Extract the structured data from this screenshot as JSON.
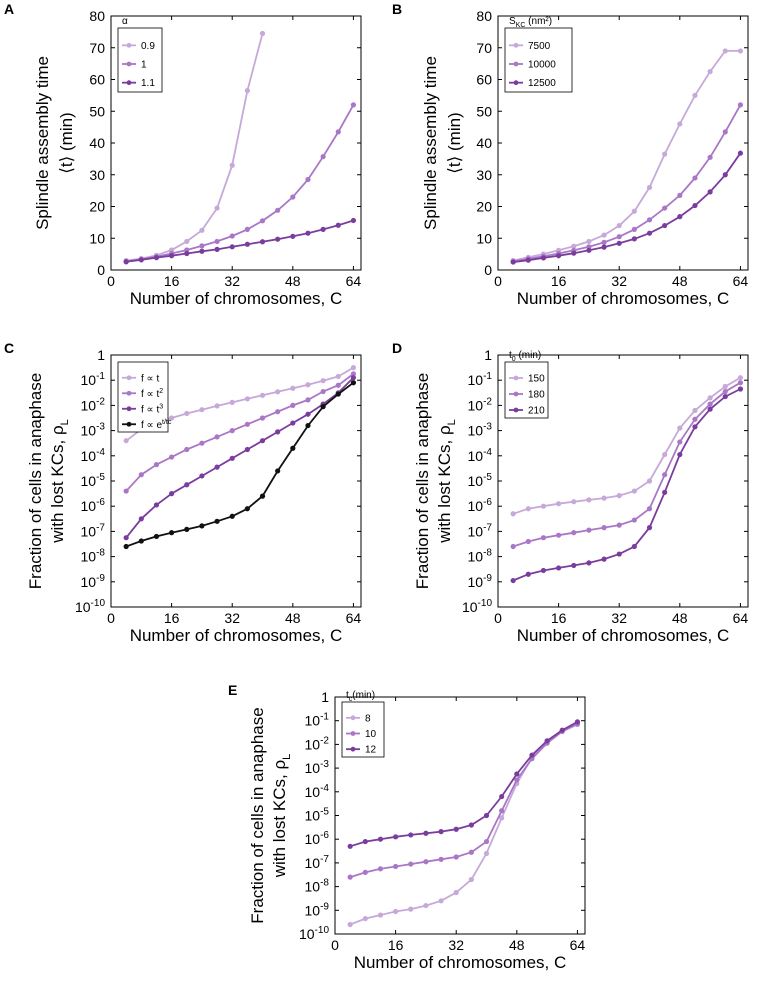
{
  "colors": {
    "axis": "#000000",
    "series_light": "#c6a9d9",
    "series_mid": "#a977c6",
    "series_dark": "#7a3d9e",
    "series_black": "#111111"
  },
  "chart_data": [
    {
      "panel": "A",
      "type": "line",
      "scale": "linear",
      "xlabel": "Number of chromosomes, C",
      "ylabel_line1": "Splindle assembly time",
      "ylabel_line2": "⟨t⟩ (min)",
      "xlim": [
        0,
        66
      ],
      "ylim": [
        0,
        80
      ],
      "xticks": [
        0,
        16,
        32,
        48,
        64
      ],
      "yticks": [
        0,
        10,
        20,
        30,
        40,
        50,
        60,
        70,
        80
      ],
      "legend_title": "α",
      "series": [
        {
          "name": "0.9",
          "color": "#c6a9d9",
          "x": [
            4,
            8,
            12,
            16,
            20,
            24,
            28,
            32,
            36,
            40
          ],
          "y": [
            3.0,
            3.6,
            4.6,
            6.3,
            9.0,
            12.5,
            19.5,
            33.0,
            56.5,
            74.5
          ]
        },
        {
          "name": "1",
          "color": "#a977c6",
          "x": [
            4,
            8,
            12,
            16,
            20,
            24,
            28,
            32,
            36,
            40,
            44,
            48,
            52,
            56,
            60,
            64
          ],
          "y": [
            2.6,
            3.4,
            4.2,
            5.2,
            6.3,
            7.6,
            9.0,
            10.7,
            12.8,
            15.5,
            18.8,
            23.0,
            28.5,
            35.7,
            43.5,
            52.0
          ]
        },
        {
          "name": "1.1",
          "color": "#7a3d9e",
          "x": [
            4,
            8,
            12,
            16,
            20,
            24,
            28,
            32,
            36,
            40,
            44,
            48,
            52,
            56,
            60,
            64
          ],
          "y": [
            2.6,
            3.2,
            3.9,
            4.5,
            5.2,
            5.9,
            6.5,
            7.3,
            8.1,
            8.9,
            9.7,
            10.6,
            11.6,
            12.8,
            14.1,
            15.6
          ]
        }
      ]
    },
    {
      "panel": "B",
      "type": "line",
      "scale": "linear",
      "xlabel": "Number of chromosomes, C",
      "ylabel_line1": "Splindle assembly time",
      "ylabel_line2": "⟨t⟩ (min)",
      "xlim": [
        0,
        66
      ],
      "ylim": [
        0,
        80
      ],
      "xticks": [
        0,
        16,
        32,
        48,
        64
      ],
      "yticks": [
        0,
        10,
        20,
        30,
        40,
        50,
        60,
        70,
        80
      ],
      "legend_title": "S_KC (nm²)",
      "legend_title_main": "S",
      "legend_title_sub": "KC",
      "legend_title_rest": " (nm²)",
      "series": [
        {
          "name": "7500",
          "color": "#c6a9d9",
          "x": [
            4,
            8,
            12,
            16,
            20,
            24,
            28,
            32,
            36,
            40,
            44,
            48,
            52,
            56,
            60,
            64
          ],
          "y": [
            3.0,
            4.0,
            5.0,
            6.2,
            7.5,
            9.0,
            11.0,
            14.0,
            18.5,
            26.0,
            36.5,
            46.0,
            55.0,
            62.5,
            69.0,
            69.0
          ]
        },
        {
          "name": "10000",
          "color": "#a977c6",
          "x": [
            4,
            8,
            12,
            16,
            20,
            24,
            28,
            32,
            36,
            40,
            44,
            48,
            52,
            56,
            60,
            64
          ],
          "y": [
            2.7,
            3.5,
            4.3,
            5.2,
            6.2,
            7.3,
            8.7,
            10.5,
            12.8,
            15.8,
            19.5,
            23.5,
            29.0,
            35.5,
            43.5,
            52.0
          ]
        },
        {
          "name": "12500",
          "color": "#7a3d9e",
          "x": [
            4,
            8,
            12,
            16,
            20,
            24,
            28,
            32,
            36,
            40,
            44,
            48,
            52,
            56,
            60,
            64
          ],
          "y": [
            2.5,
            3.1,
            3.8,
            4.5,
            5.3,
            6.2,
            7.2,
            8.4,
            9.8,
            11.6,
            14.0,
            16.8,
            20.3,
            24.6,
            30.0,
            36.8
          ]
        }
      ]
    },
    {
      "panel": "C",
      "type": "line",
      "scale": "log",
      "xlabel": "Number of chromosomes, C",
      "ylabel_line1": "Fraction of cells in anaphase",
      "ylabel_line2": "with lost KCs, ρL",
      "ylabel_line2_main": "with lost KCs, ρ",
      "ylabel_line2_sub": "L",
      "xlim": [
        0,
        66
      ],
      "ylim_exp": [
        -10,
        0
      ],
      "xticks": [
        0,
        16,
        32,
        48,
        64
      ],
      "ytick_labels": [
        "1",
        "10-1",
        "10-2",
        "10-3",
        "10-4",
        "10-5",
        "10-6",
        "10-7",
        "10-8",
        "10-9",
        "10-10"
      ],
      "legend_title": "",
      "legend_labels": [
        {
          "main": "f ∝ t",
          "sup": ""
        },
        {
          "main": "f ∝ t",
          "sup": "2"
        },
        {
          "main": "f ∝ t",
          "sup": "3"
        },
        {
          "main": "f ∝ e",
          "sup": "t/tc"
        }
      ],
      "series": [
        {
          "name": "f ∝ t",
          "color": "#c6a9d9",
          "x": [
            4,
            8,
            12,
            16,
            20,
            24,
            28,
            32,
            36,
            40,
            44,
            48,
            52,
            56,
            60,
            64
          ],
          "logy": [
            -3.4,
            -2.95,
            -2.7,
            -2.5,
            -2.32,
            -2.17,
            -2.02,
            -1.88,
            -1.74,
            -1.6,
            -1.46,
            -1.32,
            -1.18,
            -1.02,
            -0.85,
            -0.5
          ]
        },
        {
          "name": "f ∝ t2",
          "color": "#a977c6",
          "x": [
            4,
            8,
            12,
            16,
            20,
            24,
            28,
            32,
            36,
            40,
            44,
            48,
            52,
            56,
            60,
            64
          ],
          "logy": [
            -5.4,
            -4.75,
            -4.35,
            -4.05,
            -3.75,
            -3.5,
            -3.25,
            -3.0,
            -2.75,
            -2.5,
            -2.25,
            -2.0,
            -1.78,
            -1.45,
            -1.2,
            -0.75
          ]
        },
        {
          "name": "f ∝ t3",
          "color": "#7a3d9e",
          "x": [
            4,
            8,
            12,
            16,
            20,
            24,
            28,
            32,
            36,
            40,
            44,
            48,
            52,
            56,
            60,
            64
          ],
          "logy": [
            -7.25,
            -6.5,
            -5.95,
            -5.5,
            -5.15,
            -4.8,
            -4.45,
            -4.1,
            -3.75,
            -3.4,
            -3.05,
            -2.7,
            -2.35,
            -1.95,
            -1.5,
            -0.9
          ]
        },
        {
          "name": "f ∝ et/tc",
          "color": "#111111",
          "x": [
            4,
            8,
            12,
            16,
            20,
            24,
            28,
            32,
            36,
            40,
            44,
            48,
            52,
            56,
            60,
            64
          ],
          "logy": [
            -7.6,
            -7.38,
            -7.2,
            -7.05,
            -6.92,
            -6.78,
            -6.6,
            -6.4,
            -6.1,
            -5.6,
            -4.6,
            -3.7,
            -2.8,
            -2.05,
            -1.55,
            -1.1
          ]
        }
      ]
    },
    {
      "panel": "D",
      "type": "line",
      "scale": "log",
      "xlabel": "Number of chromosomes, C",
      "ylabel_line1": "Fraction of cells in anaphase",
      "ylabel_line2": "with lost KCs, ρL",
      "ylabel_line2_main": "with lost KCs, ρ",
      "ylabel_line2_sub": "L",
      "xlim": [
        0,
        66
      ],
      "ylim_exp": [
        -10,
        0
      ],
      "xticks": [
        0,
        16,
        32,
        48,
        64
      ],
      "ytick_labels": [
        "1",
        "10-1",
        "10-2",
        "10-3",
        "10-4",
        "10-5",
        "10-6",
        "10-7",
        "10-8",
        "10-9",
        "10-10"
      ],
      "legend_title": "t0 (min)",
      "legend_title_main": "t",
      "legend_title_sub": "0",
      "legend_title_rest": " (min)",
      "series": [
        {
          "name": "150",
          "color": "#c6a9d9",
          "x": [
            4,
            8,
            12,
            16,
            20,
            24,
            28,
            32,
            36,
            40,
            44,
            48,
            52,
            56,
            60,
            64
          ],
          "logy": [
            -6.3,
            -6.1,
            -6.0,
            -5.9,
            -5.82,
            -5.75,
            -5.68,
            -5.58,
            -5.4,
            -5.0,
            -3.95,
            -2.9,
            -2.2,
            -1.7,
            -1.25,
            -0.9
          ]
        },
        {
          "name": "180",
          "color": "#a977c6",
          "x": [
            4,
            8,
            12,
            16,
            20,
            24,
            28,
            32,
            36,
            40,
            44,
            48,
            52,
            56,
            60,
            64
          ],
          "logy": [
            -7.6,
            -7.4,
            -7.25,
            -7.15,
            -7.05,
            -6.95,
            -6.85,
            -6.75,
            -6.55,
            -6.1,
            -4.75,
            -3.45,
            -2.55,
            -1.95,
            -1.45,
            -1.1
          ]
        },
        {
          "name": "210",
          "color": "#7a3d9e",
          "x": [
            4,
            8,
            12,
            16,
            20,
            24,
            28,
            32,
            36,
            40,
            44,
            48,
            52,
            56,
            60,
            64
          ],
          "logy": [
            -8.95,
            -8.7,
            -8.55,
            -8.45,
            -8.35,
            -8.25,
            -8.1,
            -7.9,
            -7.6,
            -6.85,
            -5.45,
            -3.95,
            -2.85,
            -2.15,
            -1.65,
            -1.35
          ]
        }
      ]
    },
    {
      "panel": "E",
      "type": "line",
      "scale": "log",
      "xlabel": "Number of chromosomes, C",
      "ylabel_line1": "Fraction of cells in anaphase",
      "ylabel_line2": "with lost KCs, ρL",
      "ylabel_line2_main": "with lost KCs, ρ",
      "ylabel_line2_sub": "L",
      "xlim": [
        0,
        66
      ],
      "ylim_exp": [
        -10,
        0
      ],
      "xticks": [
        0,
        16,
        32,
        48,
        64
      ],
      "ytick_labels": [
        "1",
        "10-1",
        "10-2",
        "10-3",
        "10-4",
        "10-5",
        "10-6",
        "10-7",
        "10-8",
        "10-9",
        "10-10"
      ],
      "legend_title": "tc(min)",
      "legend_title_main": "t",
      "legend_title_sub": "c",
      "legend_title_rest": "(min)",
      "series": [
        {
          "name": "8",
          "color": "#c6a9d9",
          "x": [
            4,
            8,
            12,
            16,
            20,
            24,
            28,
            32,
            36,
            40,
            44,
            48,
            52,
            56,
            60,
            64
          ],
          "logy": [
            -9.6,
            -9.35,
            -9.2,
            -9.05,
            -8.95,
            -8.8,
            -8.6,
            -8.25,
            -7.7,
            -6.6,
            -5.1,
            -3.65,
            -2.55,
            -1.85,
            -1.4,
            -1.1
          ]
        },
        {
          "name": "10",
          "color": "#a977c6",
          "x": [
            4,
            8,
            12,
            16,
            20,
            24,
            28,
            32,
            36,
            40,
            44,
            48,
            52,
            56,
            60,
            64
          ],
          "logy": [
            -7.6,
            -7.4,
            -7.25,
            -7.15,
            -7.05,
            -6.95,
            -6.85,
            -6.75,
            -6.55,
            -6.1,
            -4.8,
            -3.5,
            -2.6,
            -1.95,
            -1.45,
            -1.15
          ]
        },
        {
          "name": "12",
          "color": "#7a3d9e",
          "x": [
            4,
            8,
            12,
            16,
            20,
            24,
            28,
            32,
            36,
            40,
            44,
            48,
            52,
            56,
            60,
            64
          ],
          "logy": [
            -6.3,
            -6.1,
            -6.0,
            -5.9,
            -5.82,
            -5.75,
            -5.68,
            -5.58,
            -5.4,
            -5.0,
            -4.2,
            -3.25,
            -2.45,
            -1.85,
            -1.4,
            -1.05
          ]
        }
      ]
    }
  ]
}
